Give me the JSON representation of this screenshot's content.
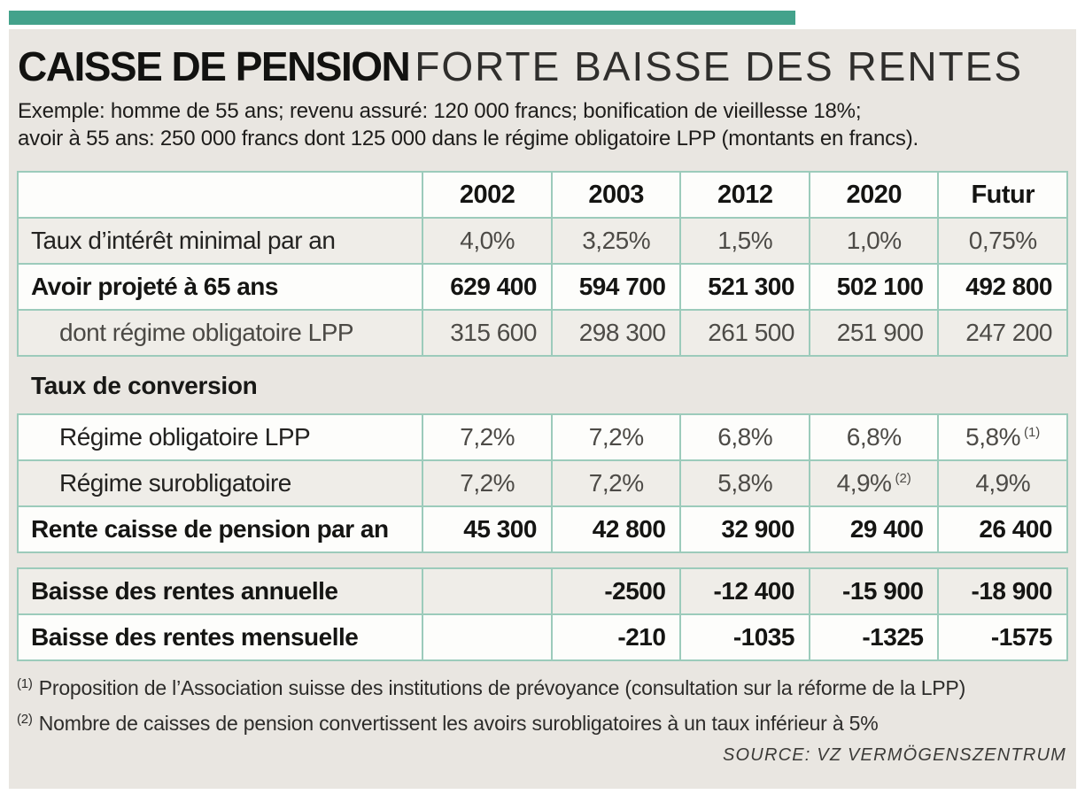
{
  "header": {
    "title_bold": "CAISSE DE PENSION",
    "title_light": "FORTE BAISSE DES RENTES",
    "subtitle_line1": "Exemple: homme de 55 ans; revenu assuré: 120 000 francs; bonification de vieillesse 18%;",
    "subtitle_line2": "avoir à 55 ans: 250 000 francs dont 125 000 dans le régime obligatoire LPP (montants en francs)."
  },
  "chart_data": {
    "type": "table",
    "title": "CAISSE DE PENSION — FORTE BAISSE DES RENTES",
    "columns": [
      "",
      "2002",
      "2003",
      "2012",
      "2020",
      "Futur"
    ],
    "tables": [
      {
        "name": "avoir",
        "has_header": true,
        "rows": [
          {
            "label": "Taux d’intérêt minimal par an",
            "indent": false,
            "style": "plain",
            "align": "center",
            "shaded": true,
            "values": [
              "4,0%",
              "3,25%",
              "1,5%",
              "1,0%",
              "0,75%"
            ]
          },
          {
            "label": "Avoir projeté à 65 ans",
            "indent": false,
            "style": "bold",
            "align": "right",
            "shaded": false,
            "values": [
              "629 400",
              "594 700",
              "521 300",
              "502 100",
              "492 800"
            ]
          },
          {
            "label": "dont régime obligatoire LPP",
            "indent": true,
            "label_muted": true,
            "style": "plain",
            "align": "right",
            "shaded": true,
            "values": [
              "315 600",
              "298 300",
              "261 500",
              "251 900",
              "247 200"
            ]
          }
        ]
      },
      {
        "name": "conversion",
        "section_title": "Taux de conversion",
        "has_header": false,
        "rows": [
          {
            "label": "Régime obligatoire LPP",
            "indent": true,
            "style": "plain",
            "align": "center",
            "shaded": false,
            "values": [
              "7,2%",
              "7,2%",
              "6,8%",
              "6,8%",
              {
                "v": "5,8%",
                "sup": "(1)"
              }
            ]
          },
          {
            "label": "Régime surobligatoire",
            "indent": true,
            "style": "plain",
            "align": "center",
            "shaded": true,
            "values": [
              "7,2%",
              "7,2%",
              "5,8%",
              {
                "v": "4,9%",
                "sup": "(2)"
              },
              "4,9%"
            ]
          },
          {
            "label": "Rente caisse de pension par an",
            "indent": false,
            "style": "bold",
            "align": "right",
            "shaded": false,
            "values": [
              "45 300",
              "42 800",
              "32 900",
              "29 400",
              "26 400"
            ]
          }
        ]
      },
      {
        "name": "baisse",
        "has_header": false,
        "rows": [
          {
            "label": "Baisse des rentes annuelle",
            "indent": false,
            "style": "bold",
            "align": "right",
            "shaded": true,
            "values": [
              "",
              "-2500",
              "-12 400",
              "-15 900",
              "-18 900"
            ]
          },
          {
            "label": "Baisse des rentes mensuelle",
            "indent": false,
            "style": "bold",
            "align": "right",
            "shaded": false,
            "values": [
              "",
              "-210",
              "-1035",
              "-1325",
              "-1575"
            ]
          }
        ]
      }
    ]
  },
  "footnotes": [
    {
      "marker": "(1)",
      "text": "Proposition de l’Association suisse des institutions de prévoyance (consultation sur la réforme de la LPP)"
    },
    {
      "marker": "(2)",
      "text": "Nombre de caisses de pension convertissent les avoirs surobligatoires à un taux inférieur à 5%"
    }
  ],
  "source": "SOURCE: VZ VERMÖGENSZENTRUM",
  "colors": {
    "accent_teal": "#43A28B",
    "table_border": "#9CCBBB",
    "panel_beige": "#E9E6E1",
    "row_shade": "#EFEDE8",
    "row_white": "#FDFDFB",
    "text_dark": "#151513",
    "text_muted": "#4D4B47"
  }
}
